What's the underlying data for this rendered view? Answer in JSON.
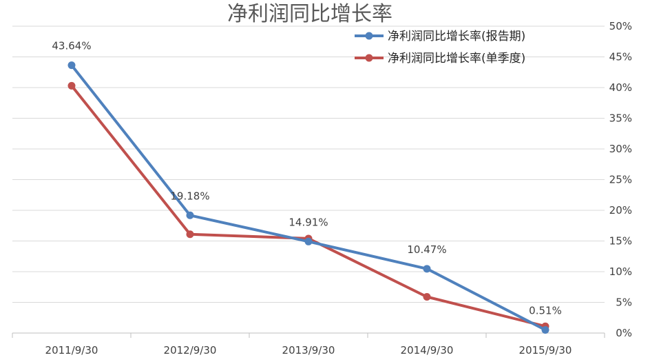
{
  "chart_data": {
    "type": "line",
    "title": "净利润同比增长率",
    "categories": [
      "2011/9/30",
      "2012/9/30",
      "2013/9/30",
      "2014/9/30",
      "2015/9/30"
    ],
    "series": [
      {
        "name": "净利润同比增长率(报告期)",
        "color": "#4f81bd",
        "values": [
          43.64,
          19.18,
          14.91,
          10.47,
          0.51
        ],
        "data_labels": [
          "43.64%",
          "19.18%",
          "14.91%",
          "10.47%",
          "0.51%"
        ]
      },
      {
        "name": "净利润同比增长率(单季度)",
        "color": "#c0504d",
        "values": [
          40.3,
          16.1,
          15.4,
          5.9,
          1.1
        ]
      }
    ],
    "ylim": [
      0,
      50
    ],
    "yticks": [
      0,
      5,
      10,
      15,
      20,
      25,
      30,
      35,
      40,
      45,
      50
    ],
    "ytick_labels": [
      "0%",
      "5%",
      "10%",
      "15%",
      "20%",
      "25%",
      "30%",
      "35%",
      "40%",
      "45%",
      "50%"
    ],
    "y_axis_side": "right",
    "grid": true,
    "legend_position": "top-right"
  }
}
